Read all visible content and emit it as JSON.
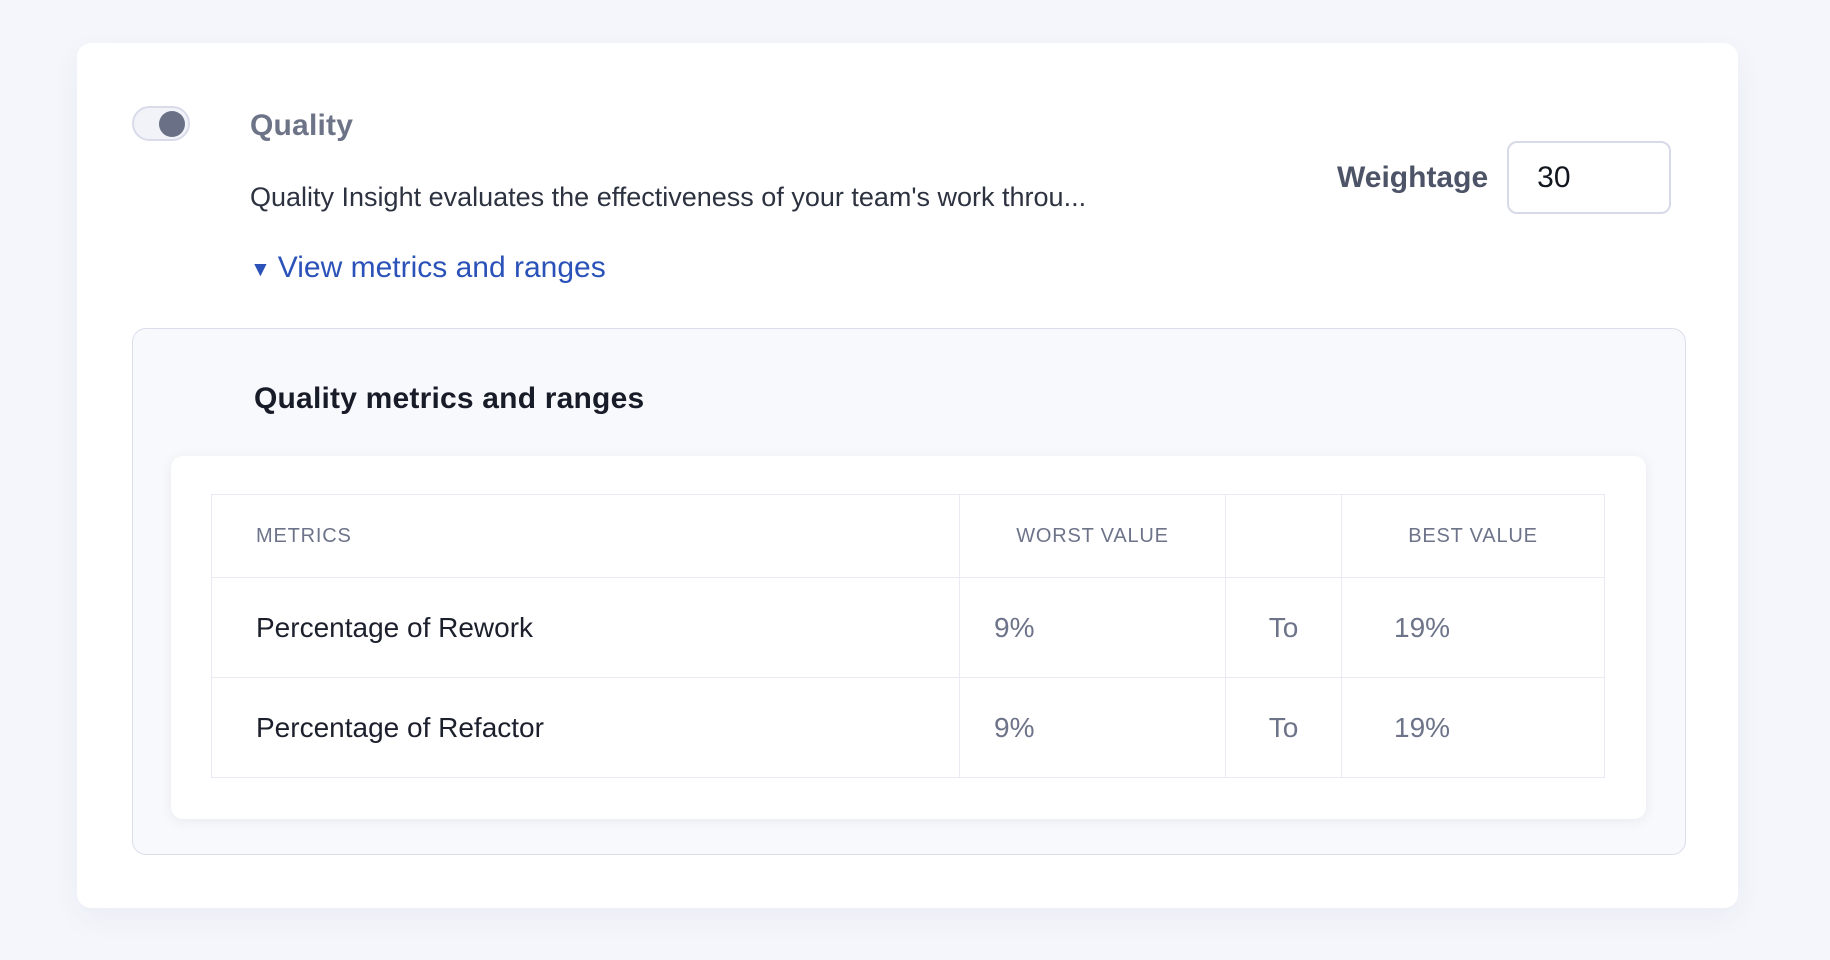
{
  "colors": {
    "page_bg": "#f4f6fb",
    "card_bg": "#ffffff",
    "panel_bg": "#f8f9fc",
    "accent_link": "#2a52b8",
    "muted_text": "#6d7389",
    "dark_text": "#1c202c",
    "toggle_knob": "#6a7086"
  },
  "section": {
    "title": "Quality",
    "toggle_state": "on",
    "description": "Quality Insight evaluates the effectiveness of your team's work throu...",
    "link": {
      "icon": "▼",
      "label": "View metrics and ranges"
    },
    "weightage": {
      "label": "Weightage",
      "value": "30"
    }
  },
  "panel": {
    "title": "Quality metrics and ranges",
    "table": {
      "headers": {
        "metrics": "METRICS",
        "worst": "WORST VALUE",
        "to": "",
        "best": "BEST VALUE"
      },
      "rows": [
        {
          "metric": "Percentage of Rework",
          "worst": "9%",
          "to": "To",
          "best": "19%"
        },
        {
          "metric": "Percentage of Refactor",
          "worst": "9%",
          "to": "To",
          "best": "19%"
        }
      ]
    }
  }
}
